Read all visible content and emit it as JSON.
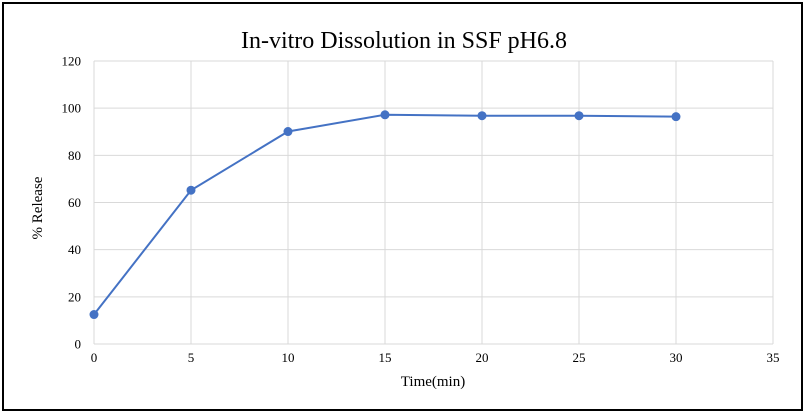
{
  "chart_data": {
    "type": "line",
    "title": "In-vitro Dissolution in SSF pH6.8",
    "xlabel": "Time(min)",
    "ylabel": "% Release",
    "xlim": [
      0,
      35
    ],
    "ylim": [
      0,
      120
    ],
    "xticks": [
      0,
      5,
      10,
      15,
      20,
      25,
      30,
      35
    ],
    "yticks": [
      0,
      20,
      40,
      60,
      80,
      100,
      120
    ],
    "grid": true,
    "legend": "none",
    "series": [
      {
        "name": "% Release",
        "color": "#4472c4",
        "x": [
          0,
          5,
          10,
          15,
          20,
          25,
          30
        ],
        "y": [
          12.5,
          65.2,
          90.1,
          97.2,
          96.8,
          96.8,
          96.4
        ]
      }
    ]
  }
}
